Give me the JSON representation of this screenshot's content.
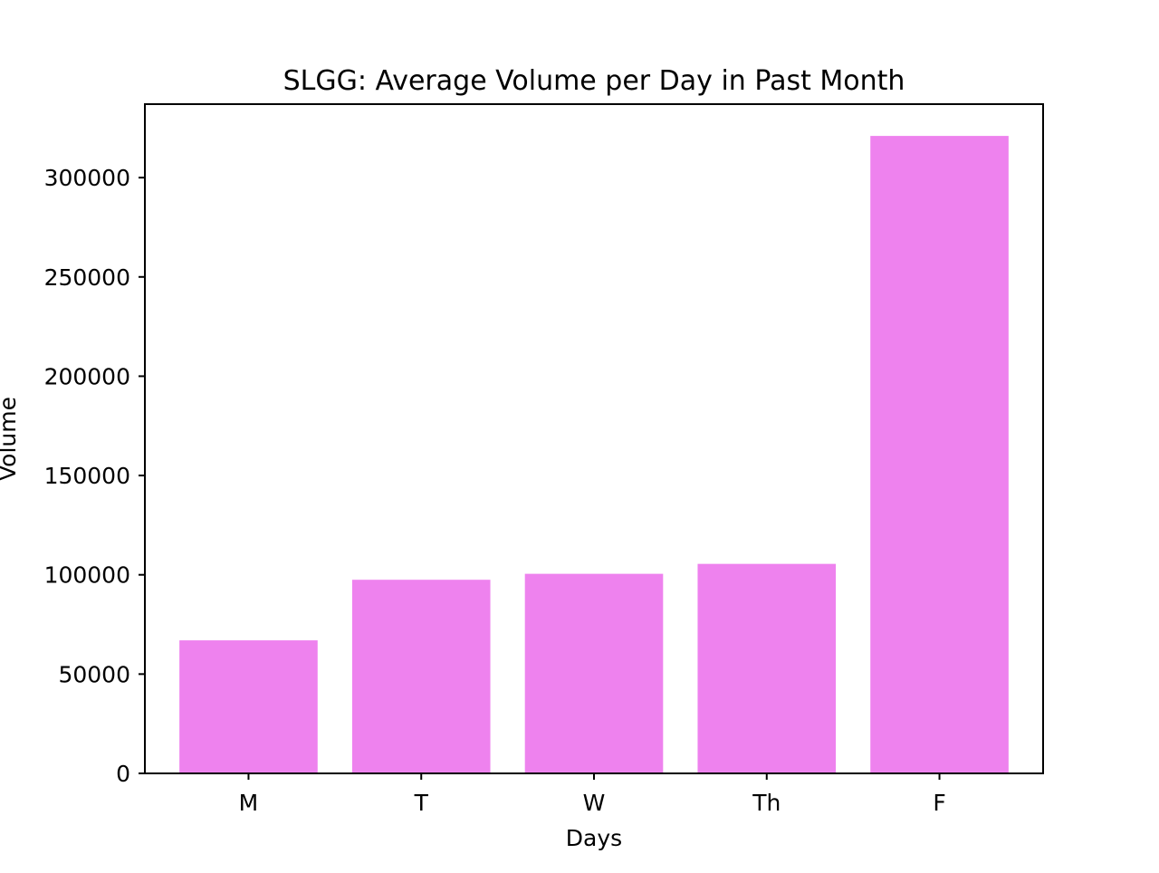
{
  "chart_data": {
    "type": "bar",
    "title": "SLGG: Average Volume per Day in Past Month",
    "xlabel": "Days",
    "ylabel": "Volume",
    "categories": [
      "M",
      "T",
      "W",
      "Th",
      "F"
    ],
    "values": [
      67000,
      97500,
      100500,
      105500,
      321000
    ],
    "ylim": [
      0,
      337000
    ],
    "yticks": [
      0,
      50000,
      100000,
      150000,
      200000,
      250000,
      300000
    ],
    "ytick_labels": [
      "0",
      "50000",
      "100000",
      "150000",
      "200000",
      "250000",
      "300000"
    ],
    "bar_color": "#ee82ee",
    "grid": false,
    "legend": "none"
  }
}
